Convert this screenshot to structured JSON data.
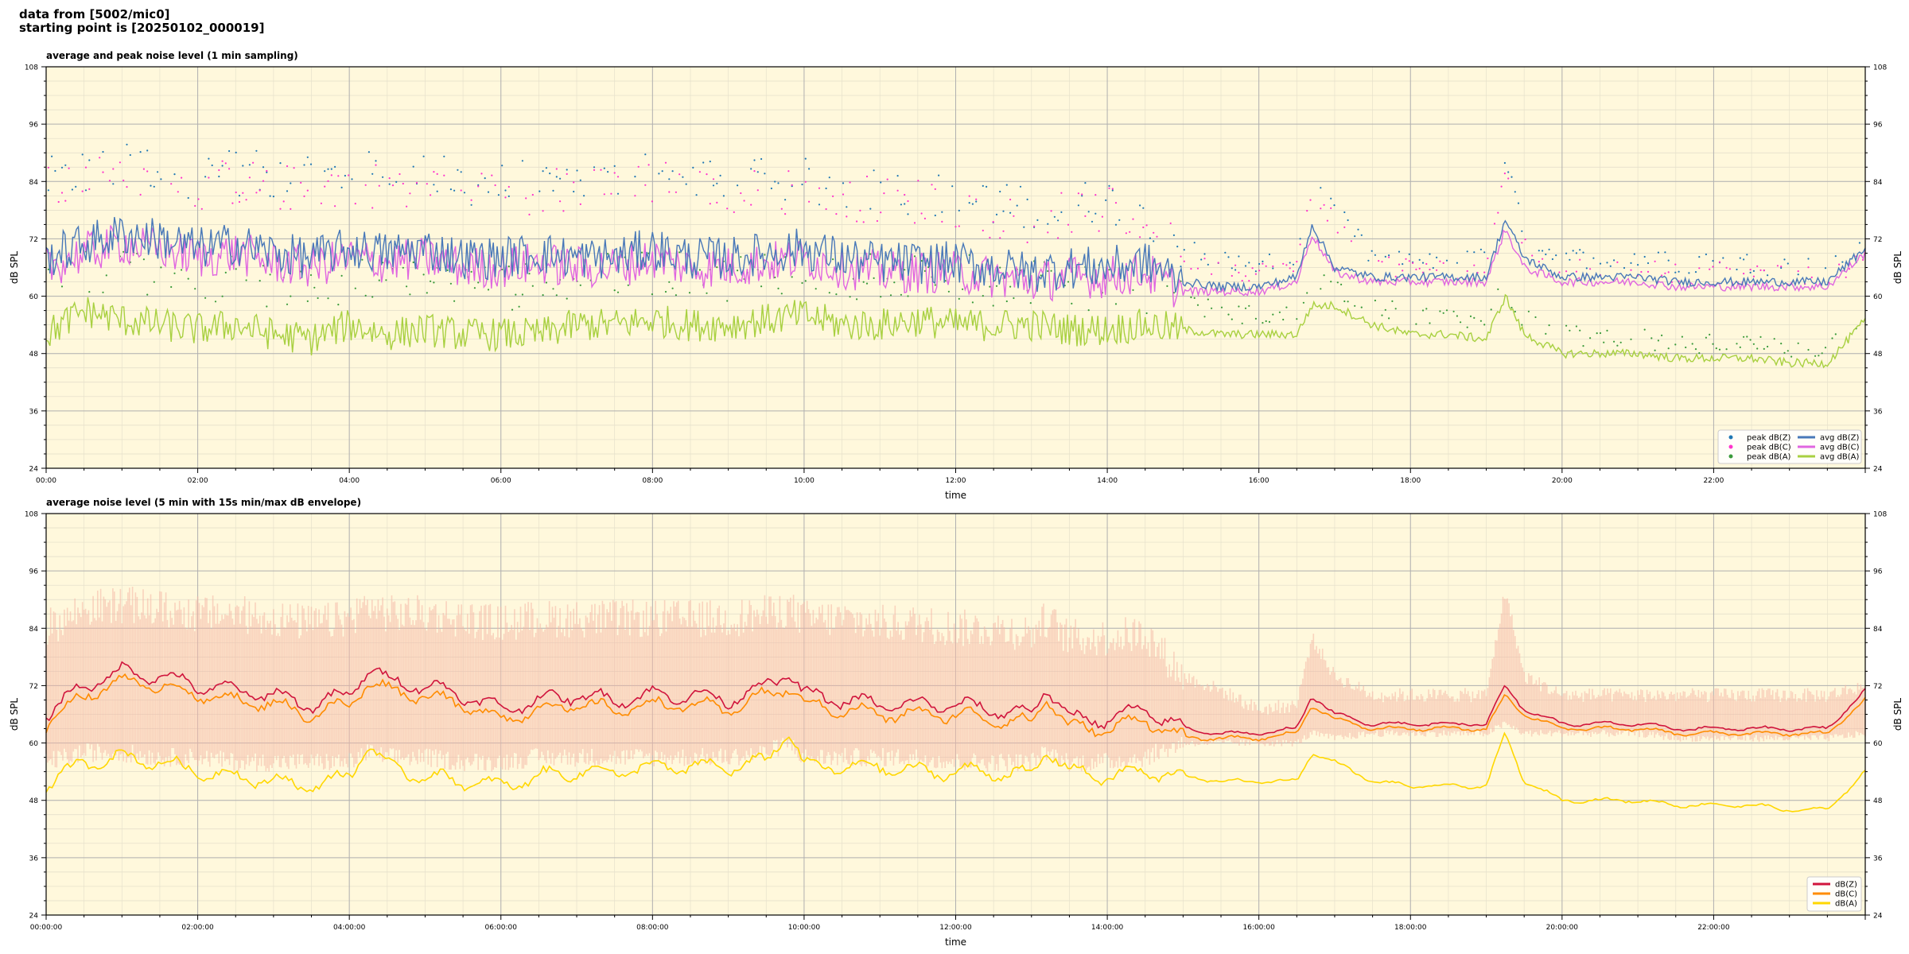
{
  "header": {
    "line1": "data from [5002/mic0]",
    "line2": "starting point is [20250102_000019]"
  },
  "colors": {
    "background": "#fff8dc",
    "peak_z": "#1f77b4",
    "peak_c": "#ff33cc",
    "peak_a": "#3a9a3a",
    "avg_z": "#4878b8",
    "avg_c": "#e066e0",
    "avg_a": "#a8d040",
    "dbz": "#d0143c",
    "dbc": "#ff8c00",
    "dba": "#ffd700",
    "envelope": "#f4b4a4"
  },
  "chart_data": [
    {
      "type": "line",
      "title": "average and peak noise level (1 min sampling)",
      "xlabel": "time",
      "ylabel": "dB SPL",
      "ylabel_right": "dB SPL",
      "ylim": [
        24,
        108
      ],
      "yticks": [
        "24",
        "36",
        "48",
        "60",
        "72",
        "84",
        "96",
        "108"
      ],
      "xlim": [
        0,
        24
      ],
      "xticks": [
        "00:00",
        "02:00",
        "04:00",
        "06:00",
        "08:00",
        "10:00",
        "12:00",
        "14:00",
        "16:00",
        "18:00",
        "20:00",
        "22:00"
      ],
      "grid": true,
      "legend_position": "bottom-right",
      "legend": [
        {
          "label": "peak dB(Z)",
          "kind": "dot",
          "color": "#1f77b4"
        },
        {
          "label": "peak dB(C)",
          "kind": "dot",
          "color": "#ff33cc"
        },
        {
          "label": "peak dB(A)",
          "kind": "dot",
          "color": "#3a9a3a"
        },
        {
          "label": "avg dB(Z)",
          "kind": "line",
          "color": "#4878b8"
        },
        {
          "label": "avg dB(C)",
          "kind": "line",
          "color": "#e066e0"
        },
        {
          "label": "avg dB(A)",
          "kind": "line",
          "color": "#a8d040"
        }
      ],
      "x_unit": "hours",
      "x": [
        0,
        0.5,
        1,
        1.5,
        2,
        2.5,
        3,
        3.5,
        4,
        4.5,
        5,
        5.5,
        6,
        6.5,
        7,
        7.5,
        8,
        8.5,
        9,
        9.5,
        10,
        10.5,
        11,
        11.5,
        12,
        12.5,
        13,
        13.5,
        14,
        14.5,
        15,
        15.5,
        16,
        16.5,
        16.7,
        17,
        17.5,
        18,
        18.5,
        19,
        19.25,
        19.5,
        20,
        20.5,
        21,
        21.5,
        22,
        22.5,
        23,
        23.5,
        24
      ],
      "series": [
        {
          "name": "avg dB(Z)",
          "style": "line",
          "color": "#4878b8",
          "values": [
            68,
            71,
            73,
            72,
            70,
            71,
            69,
            68,
            70,
            69,
            70,
            68,
            68,
            69,
            68,
            68,
            70,
            68,
            68,
            69,
            70,
            68,
            67,
            67,
            67,
            66,
            65,
            66,
            66,
            67,
            63,
            62,
            62,
            64,
            75,
            66,
            64,
            64,
            64,
            64,
            76,
            68,
            64,
            64,
            64,
            63,
            63,
            63,
            63,
            63,
            70
          ]
        },
        {
          "name": "avg dB(C)",
          "style": "line",
          "color": "#e066e0",
          "values": [
            66,
            69,
            71,
            70,
            68,
            69,
            67,
            66,
            68,
            67,
            68,
            66,
            66,
            67,
            66,
            66,
            68,
            66,
            66,
            67,
            68,
            66,
            65,
            65,
            65,
            64,
            63,
            64,
            64,
            65,
            61,
            61,
            61,
            63,
            73,
            65,
            63,
            63,
            63,
            63,
            74,
            66,
            63,
            63,
            63,
            62,
            62,
            62,
            62,
            62,
            69
          ]
        },
        {
          "name": "avg dB(A)",
          "style": "line",
          "color": "#a8d040",
          "values": [
            52,
            57,
            55,
            54,
            53,
            54,
            52,
            51,
            54,
            52,
            53,
            52,
            52,
            52,
            54,
            54,
            55,
            54,
            54,
            55,
            56,
            54,
            54,
            55,
            54,
            54,
            54,
            53,
            53,
            54,
            53,
            52,
            52,
            52,
            58,
            58,
            54,
            52,
            52,
            51,
            60,
            52,
            48,
            48,
            48,
            47,
            47,
            47,
            46,
            46,
            55
          ]
        },
        {
          "name": "peak dB(Z)",
          "style": "scatter",
          "color": "#1f77b4",
          "values": [
            84,
            86,
            87,
            87,
            85,
            86,
            85,
            84,
            86,
            85,
            85,
            84,
            83,
            84,
            84,
            84,
            86,
            84,
            83,
            84,
            84,
            83,
            82,
            82,
            80,
            79,
            78,
            79,
            80,
            78,
            70,
            68,
            66,
            68,
            84,
            78,
            68,
            67,
            67,
            68,
            90,
            72,
            68,
            68,
            68,
            67,
            67,
            67,
            66,
            66,
            70
          ]
        },
        {
          "name": "peak dB(C)",
          "style": "scatter",
          "color": "#ff33cc",
          "values": [
            82,
            84,
            85,
            85,
            83,
            84,
            83,
            82,
            84,
            83,
            83,
            82,
            81,
            82,
            82,
            82,
            84,
            82,
            81,
            82,
            82,
            81,
            80,
            80,
            78,
            77,
            76,
            77,
            78,
            76,
            68,
            66,
            65,
            66,
            82,
            76,
            66,
            66,
            66,
            66,
            88,
            70,
            66,
            66,
            66,
            65,
            65,
            65,
            64,
            64,
            68
          ]
        },
        {
          "name": "peak dB(A)",
          "style": "scatter",
          "color": "#3a9a3a",
          "values": [
            62,
            66,
            65,
            64,
            63,
            64,
            62,
            61,
            64,
            62,
            63,
            62,
            62,
            62,
            64,
            64,
            65,
            64,
            64,
            65,
            66,
            64,
            64,
            65,
            64,
            63,
            63,
            62,
            62,
            60,
            58,
            57,
            56,
            56,
            64,
            62,
            58,
            56,
            56,
            55,
            62,
            55,
            52,
            51,
            51,
            50,
            50,
            50,
            49,
            49,
            56
          ]
        }
      ]
    },
    {
      "type": "line",
      "title": "average noise level (5 min with 15s min/max dB envelope)",
      "xlabel": "time",
      "ylabel": "dB SPL",
      "ylabel_right": "dB SPL",
      "ylim": [
        24,
        108
      ],
      "yticks": [
        "24",
        "36",
        "48",
        "60",
        "72",
        "84",
        "96",
        "108"
      ],
      "xlim": [
        0,
        24
      ],
      "xticks": [
        "00:00:00",
        "02:00:00",
        "04:00:00",
        "06:00:00",
        "08:00:00",
        "10:00:00",
        "12:00:00",
        "14:00:00",
        "16:00:00",
        "18:00:00",
        "20:00:00",
        "22:00:00"
      ],
      "grid": true,
      "legend_position": "bottom-right",
      "legend": [
        {
          "label": "dB(Z)",
          "kind": "line",
          "color": "#d0143c"
        },
        {
          "label": "dB(C)",
          "kind": "line",
          "color": "#ff8c00"
        },
        {
          "label": "dB(A)",
          "kind": "line",
          "color": "#ffd700"
        }
      ],
      "x_unit": "hours",
      "x": [
        0,
        0.5,
        1,
        1.5,
        2,
        2.5,
        3,
        3.5,
        4,
        4.25,
        4.5,
        5,
        5.5,
        6,
        6.5,
        7,
        7.5,
        8,
        8.5,
        9,
        9.5,
        9.8,
        10,
        10.5,
        11,
        11.5,
        12,
        12.5,
        13,
        13.2,
        13.5,
        14,
        14.5,
        15,
        15.5,
        16,
        16.5,
        16.7,
        17,
        17.5,
        18,
        18.5,
        19,
        19.25,
        19.5,
        20,
        20.5,
        21,
        21.5,
        22,
        22.5,
        23,
        23.5,
        24
      ],
      "series": [
        {
          "name": "dB(Z)",
          "style": "line",
          "color": "#d0143c",
          "values": [
            66,
            72,
            75,
            74,
            72,
            71,
            70,
            68,
            70,
            76,
            73,
            72,
            70,
            67,
            69,
            70,
            69,
            70,
            70,
            69,
            72,
            75,
            70,
            69,
            68,
            68,
            68,
            67,
            66,
            72,
            65,
            65,
            67,
            63,
            62,
            62,
            63,
            70,
            66,
            64,
            64,
            64,
            64,
            72,
            67,
            64,
            64,
            64,
            63,
            63,
            63,
            63,
            63,
            71
          ]
        },
        {
          "name": "dB(C)",
          "style": "line",
          "color": "#ff8c00",
          "values": [
            64,
            70,
            73,
            72,
            70,
            69,
            68,
            66,
            68,
            73,
            71,
            70,
            68,
            65,
            67,
            68,
            67,
            68,
            68,
            67,
            70,
            72,
            68,
            67,
            66,
            66,
            66,
            65,
            64,
            70,
            63,
            63,
            65,
            61,
            61,
            61,
            62,
            68,
            65,
            63,
            63,
            63,
            63,
            70,
            66,
            63,
            63,
            63,
            62,
            62,
            62,
            62,
            62,
            69
          ]
        },
        {
          "name": "dB(A)",
          "style": "line",
          "color": "#ffd700",
          "values": [
            51,
            56,
            57,
            56,
            54,
            53,
            52,
            51,
            53,
            60,
            55,
            53,
            52,
            51,
            53,
            54,
            54,
            55,
            55,
            55,
            56,
            63,
            55,
            55,
            55,
            54,
            54,
            54,
            53,
            59,
            54,
            53,
            54,
            53,
            52,
            52,
            52,
            58,
            56,
            52,
            51,
            51,
            51,
            62,
            52,
            48,
            48,
            48,
            47,
            47,
            47,
            46,
            46,
            54
          ]
        },
        {
          "name": "max",
          "style": "envelope",
          "color": "#f4b4a4",
          "values": [
            84,
            88,
            89,
            88,
            87,
            87,
            86,
            85,
            86,
            89,
            87,
            87,
            86,
            85,
            86,
            86,
            86,
            86,
            86,
            86,
            87,
            88,
            86,
            86,
            85,
            85,
            84,
            84,
            83,
            86,
            82,
            82,
            83,
            74,
            71,
            67,
            68,
            82,
            74,
            70,
            70,
            70,
            70,
            92,
            74,
            70,
            70,
            70,
            70,
            70,
            70,
            70,
            70,
            72
          ]
        },
        {
          "name": "min",
          "style": "envelope",
          "color": "#f4b4a4",
          "values": [
            56,
            58,
            58,
            57,
            57,
            56,
            56,
            56,
            56,
            58,
            57,
            57,
            56,
            56,
            57,
            57,
            57,
            57,
            57,
            57,
            58,
            60,
            57,
            57,
            57,
            57,
            56,
            56,
            56,
            58,
            56,
            56,
            57,
            60,
            60,
            60,
            60,
            62,
            61,
            62,
            62,
            62,
            62,
            64,
            62,
            62,
            62,
            62,
            61,
            61,
            61,
            61,
            61,
            62
          ]
        }
      ]
    }
  ]
}
